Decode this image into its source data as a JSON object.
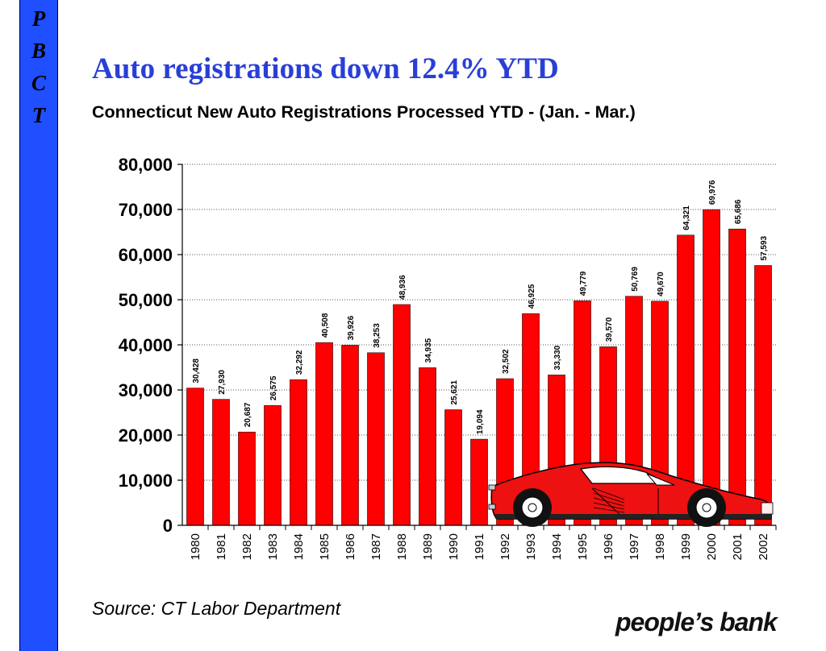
{
  "sidebar": {
    "letters": [
      "P",
      "B",
      "C",
      "T"
    ]
  },
  "header": {
    "title": "Auto registrations down 12.4% YTD",
    "subtitle": "Connecticut New Auto Registrations Processed YTD - (Jan. - Mar.)"
  },
  "footer": {
    "source": "Source: CT Labor Department",
    "brand": "people’s bank"
  },
  "colors": {
    "bar": "#ff0000",
    "sidebar": "#1f4fff",
    "title": "#2a3fd6"
  },
  "chart_data": {
    "type": "bar",
    "categories": [
      "1980",
      "1981",
      "1982",
      "1983",
      "1984",
      "1985",
      "1986",
      "1987",
      "1988",
      "1989",
      "1990",
      "1991",
      "1992",
      "1993",
      "1994",
      "1995",
      "1996",
      "1997",
      "1998",
      "1999",
      "2000",
      "2001",
      "2002"
    ],
    "values": [
      30428,
      27930,
      20687,
      26575,
      32292,
      40508,
      39926,
      38253,
      48936,
      34935,
      25621,
      19094,
      32502,
      46925,
      33330,
      49779,
      39570,
      50769,
      49670,
      64321,
      69976,
      65686,
      57593
    ],
    "data_labels": [
      "30,428",
      "27,930",
      "20,687",
      "26,575",
      "32,292",
      "40,508",
      "39,926",
      "38,253",
      "48,936",
      "34,935",
      "25,621",
      "19,094",
      "32,502",
      "46,925",
      "33,330",
      "49,779",
      "39,570",
      "50,769",
      "49,670",
      "64,321",
      "69,976",
      "65,686",
      "57,593"
    ],
    "ylim": [
      0,
      80000
    ],
    "yticks": [
      0,
      10000,
      20000,
      30000,
      40000,
      50000,
      60000,
      70000,
      80000
    ],
    "ytick_labels": [
      "0",
      "10,000",
      "20,000",
      "30,000",
      "40,000",
      "50,000",
      "60,000",
      "70,000",
      "80,000"
    ],
    "grid": true,
    "legend": "none"
  }
}
